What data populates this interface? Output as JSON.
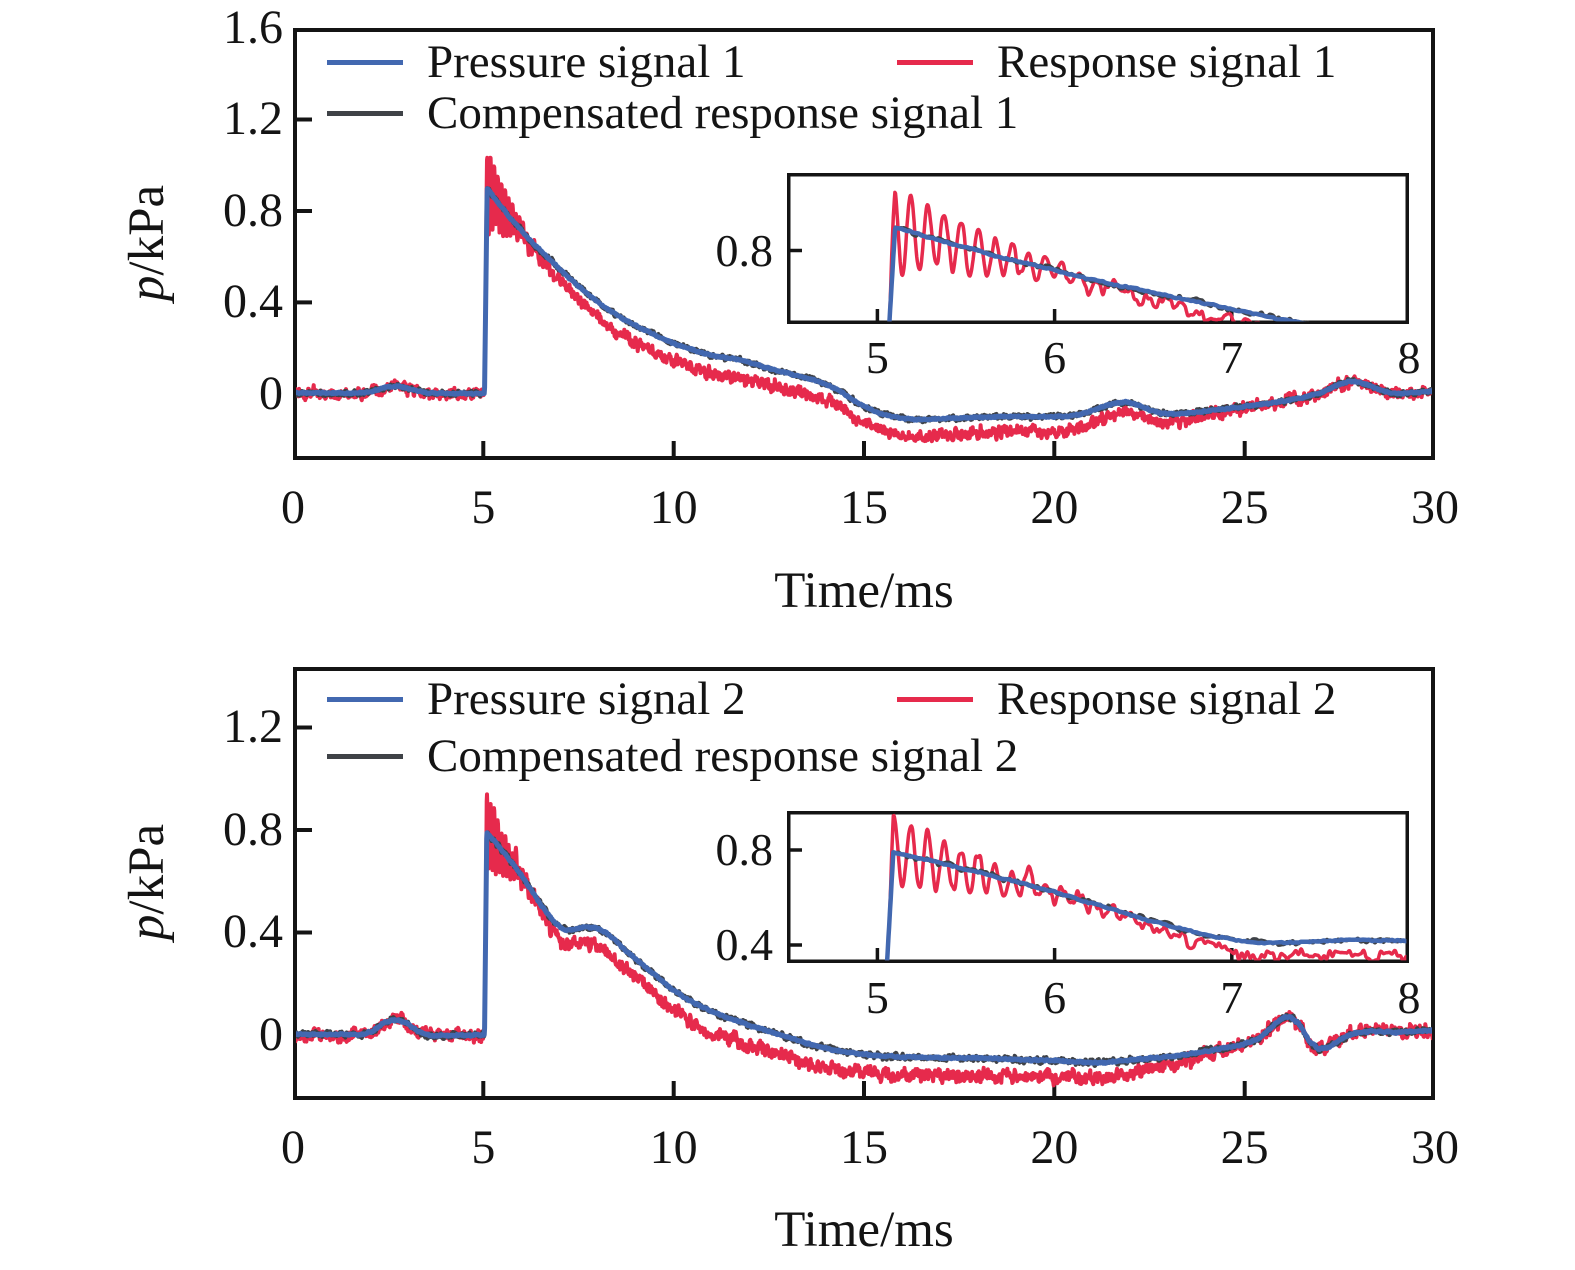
{
  "chart_data": [
    {
      "type": "line",
      "id": "signal1",
      "xlabel": "Time/ms",
      "ylabel_italic": "p",
      "ylabel_rest": "/kPa",
      "x_range": [
        0,
        30
      ],
      "y_range": [
        -0.289,
        1.6
      ],
      "x_ticks": [
        0,
        5,
        10,
        15,
        20,
        25,
        30
      ],
      "x_tick_labels": [
        "0",
        "5",
        "10",
        "15",
        "20",
        "25",
        "30"
      ],
      "x_tick_marks": [
        5,
        10,
        15,
        20,
        25
      ],
      "y_ticks": [
        0,
        0.4,
        0.8,
        1.2,
        1.6
      ],
      "y_tick_labels": [
        "0",
        "0.4",
        "0.8",
        "1.2",
        "1.6"
      ],
      "y_tick_marks": [
        0,
        0.4,
        0.8,
        1.2
      ],
      "grid": false,
      "legend_position": "top-inside",
      "inset": {
        "x_range": [
          4.49,
          8.0
        ],
        "y_range": [
          0.4826,
          1.1348
        ],
        "x_ticks": [
          5,
          6,
          7,
          8
        ],
        "x_tick_labels": [
          "5",
          "6",
          "7",
          "8"
        ],
        "x_tick_marks": [
          5,
          6,
          7
        ],
        "y_ticks": [
          0.8
        ],
        "y_tick_labels": [
          "0.8"
        ],
        "y_tick_marks": [
          0.8
        ]
      },
      "series": [
        {
          "name": "Pressure signal 1",
          "role": "pressure",
          "color": "#4268b0",
          "seed": 11,
          "noise_amp": 0.004,
          "anchors": [
            [
              0,
              0.005
            ],
            [
              1.7,
              0.003
            ],
            [
              2.1,
              0.012
            ],
            [
              2.45,
              0.03
            ],
            [
              2.75,
              0.035
            ],
            [
              3.1,
              0.02
            ],
            [
              3.5,
              0.004
            ],
            [
              4.0,
              0.002
            ],
            [
              5.03,
              0.002
            ],
            [
              5.1,
              0.9
            ],
            [
              5.35,
              0.845
            ],
            [
              5.7,
              0.77
            ],
            [
              6.0,
              0.715
            ],
            [
              6.3,
              0.66
            ],
            [
              6.6,
              0.61
            ],
            [
              6.9,
              0.565
            ],
            [
              7.2,
              0.515
            ],
            [
              7.5,
              0.47
            ],
            [
              7.8,
              0.43
            ],
            [
              8.1,
              0.39
            ],
            [
              8.4,
              0.355
            ],
            [
              8.7,
              0.325
            ],
            [
              9.0,
              0.3
            ],
            [
              9.3,
              0.275
            ],
            [
              9.6,
              0.25
            ],
            [
              9.9,
              0.228
            ],
            [
              10.2,
              0.21
            ],
            [
              10.5,
              0.193
            ],
            [
              10.8,
              0.178
            ],
            [
              11.1,
              0.165
            ],
            [
              11.4,
              0.158
            ],
            [
              11.7,
              0.15
            ],
            [
              12.0,
              0.138
            ],
            [
              12.3,
              0.122
            ],
            [
              12.6,
              0.108
            ],
            [
              12.9,
              0.095
            ],
            [
              13.2,
              0.082
            ],
            [
              13.5,
              0.07
            ],
            [
              13.8,
              0.055
            ],
            [
              14.1,
              0.035
            ],
            [
              14.4,
              0.01
            ],
            [
              14.7,
              -0.025
            ],
            [
              15.0,
              -0.055
            ],
            [
              15.4,
              -0.085
            ],
            [
              15.8,
              -0.1
            ],
            [
              16.2,
              -0.11
            ],
            [
              16.6,
              -0.112
            ],
            [
              17.0,
              -0.108
            ],
            [
              17.5,
              -0.105
            ],
            [
              18.0,
              -0.102
            ],
            [
              18.5,
              -0.1
            ],
            [
              19.0,
              -0.098
            ],
            [
              19.5,
              -0.1
            ],
            [
              20.0,
              -0.1
            ],
            [
              20.4,
              -0.097
            ],
            [
              20.8,
              -0.085
            ],
            [
              21.2,
              -0.06
            ],
            [
              21.6,
              -0.04
            ],
            [
              21.9,
              -0.035
            ],
            [
              22.2,
              -0.048
            ],
            [
              22.5,
              -0.07
            ],
            [
              22.8,
              -0.085
            ],
            [
              23.2,
              -0.088
            ],
            [
              23.6,
              -0.082
            ],
            [
              24.0,
              -0.075
            ],
            [
              24.5,
              -0.065
            ],
            [
              25.0,
              -0.055
            ],
            [
              25.5,
              -0.045
            ],
            [
              26.0,
              -0.032
            ],
            [
              26.5,
              -0.018
            ],
            [
              27.0,
              0.005
            ],
            [
              27.4,
              0.035
            ],
            [
              27.75,
              0.055
            ],
            [
              28.05,
              0.05
            ],
            [
              28.4,
              0.028
            ],
            [
              28.7,
              0.01
            ],
            [
              29.0,
              0.002
            ],
            [
              29.4,
              0.004
            ],
            [
              29.7,
              0.01
            ],
            [
              30,
              0.012
            ]
          ]
        },
        {
          "name": "Response signal 1",
          "role": "response",
          "color": "#e62a4c",
          "seed": 12,
          "noise_amp": 0.03,
          "offset_anchors": [
            [
              0,
              0
            ],
            [
              5.8,
              0
            ],
            [
              6.5,
              -0.03
            ],
            [
              7.5,
              -0.06
            ],
            [
              8.5,
              -0.075
            ],
            [
              10,
              -0.08
            ],
            [
              12,
              -0.075
            ],
            [
              14,
              -0.07
            ],
            [
              15,
              -0.072
            ],
            [
              16,
              -0.075
            ],
            [
              17,
              -0.07
            ],
            [
              18,
              -0.068
            ],
            [
              19,
              -0.066
            ],
            [
              20,
              -0.062
            ],
            [
              21,
              -0.055
            ],
            [
              22,
              -0.045
            ],
            [
              23,
              -0.035
            ],
            [
              24,
              -0.02
            ],
            [
              24.8,
              -0.008
            ],
            [
              25.5,
              0
            ],
            [
              30,
              0
            ]
          ],
          "osc": {
            "t0": 5.07,
            "period": 0.095,
            "tau": 0.62,
            "amp": 0.19
          }
        },
        {
          "name": "Compensated response signal 1",
          "role": "compensated",
          "color": "#3f4247",
          "seed": 13,
          "noise_amp": 0.013
        }
      ]
    },
    {
      "type": "line",
      "id": "signal2",
      "xlabel": "Time/ms",
      "ylabel_italic": "p",
      "ylabel_rest": "/kPa",
      "x_range": [
        0,
        30
      ],
      "y_range": [
        -0.2537,
        1.436
      ],
      "x_ticks": [
        0,
        5,
        10,
        15,
        20,
        25,
        30
      ],
      "x_tick_labels": [
        "0",
        "5",
        "10",
        "15",
        "20",
        "25",
        "30"
      ],
      "x_tick_marks": [
        5,
        10,
        15,
        20,
        25
      ],
      "y_ticks": [
        0,
        0.4,
        0.8,
        1.2
      ],
      "y_tick_labels": [
        "0",
        "0.4",
        "0.8",
        "1.2"
      ],
      "y_tick_marks": [
        0,
        0.4,
        0.8,
        1.2
      ],
      "grid": false,
      "legend_position": "top-inside",
      "inset": {
        "x_range": [
          4.49,
          8.0
        ],
        "y_range": [
          0.3242,
          0.9642
        ],
        "x_ticks": [
          5,
          6,
          7,
          8
        ],
        "x_tick_labels": [
          "5",
          "6",
          "7",
          "8"
        ],
        "x_tick_marks": [
          5,
          6,
          7
        ],
        "y_ticks": [
          0.8,
          0.4
        ],
        "y_tick_labels": [
          "0.8",
          "0.4"
        ],
        "y_tick_marks": [
          0.8,
          0.4
        ]
      },
      "series": [
        {
          "name": "Pressure signal 2",
          "role": "pressure",
          "color": "#4268b0",
          "seed": 21,
          "noise_amp": 0.004,
          "anchors": [
            [
              0,
              0.003
            ],
            [
              1.8,
              0.002
            ],
            [
              2.1,
              0.015
            ],
            [
              2.4,
              0.05
            ],
            [
              2.7,
              0.06
            ],
            [
              3.0,
              0.045
            ],
            [
              3.3,
              0.012
            ],
            [
              3.6,
              -0.003
            ],
            [
              4.0,
              -0.002
            ],
            [
              5.03,
              0
            ],
            [
              5.09,
              0.79
            ],
            [
              5.3,
              0.755
            ],
            [
              5.6,
              0.7
            ],
            [
              5.9,
              0.645
            ],
            [
              6.2,
              0.578
            ],
            [
              6.5,
              0.51
            ],
            [
              6.8,
              0.452
            ],
            [
              7.0,
              0.422
            ],
            [
              7.2,
              0.408
            ],
            [
              7.45,
              0.415
            ],
            [
              7.7,
              0.422
            ],
            [
              7.95,
              0.418
            ],
            [
              8.2,
              0.4
            ],
            [
              8.5,
              0.365
            ],
            [
              8.8,
              0.322
            ],
            [
              9.1,
              0.285
            ],
            [
              9.4,
              0.248
            ],
            [
              9.7,
              0.21
            ],
            [
              10.0,
              0.175
            ],
            [
              10.3,
              0.145
            ],
            [
              10.6,
              0.12
            ],
            [
              11.0,
              0.092
            ],
            [
              11.4,
              0.068
            ],
            [
              11.8,
              0.048
            ],
            [
              12.2,
              0.028
            ],
            [
              12.6,
              0.01
            ],
            [
              13.0,
              -0.008
            ],
            [
              13.4,
              -0.028
            ],
            [
              13.8,
              -0.045
            ],
            [
              14.2,
              -0.058
            ],
            [
              14.6,
              -0.068
            ],
            [
              15.0,
              -0.075
            ],
            [
              15.5,
              -0.082
            ],
            [
              16.0,
              -0.086
            ],
            [
              16.5,
              -0.087
            ],
            [
              17.0,
              -0.09
            ],
            [
              17.5,
              -0.09
            ],
            [
              18.0,
              -0.09
            ],
            [
              18.5,
              -0.092
            ],
            [
              19.0,
              -0.095
            ],
            [
              19.5,
              -0.098
            ],
            [
              20.0,
              -0.1
            ],
            [
              20.5,
              -0.104
            ],
            [
              21.0,
              -0.108
            ],
            [
              21.4,
              -0.108
            ],
            [
              21.8,
              -0.1
            ],
            [
              22.2,
              -0.095
            ],
            [
              22.6,
              -0.09
            ],
            [
              23.0,
              -0.085
            ],
            [
              23.4,
              -0.078
            ],
            [
              23.8,
              -0.068
            ],
            [
              24.2,
              -0.058
            ],
            [
              24.6,
              -0.048
            ],
            [
              25.0,
              -0.035
            ],
            [
              25.4,
              -0.012
            ],
            [
              25.7,
              0.03
            ],
            [
              26.0,
              0.068
            ],
            [
              26.2,
              0.072
            ],
            [
              26.45,
              0.04
            ],
            [
              26.7,
              -0.025
            ],
            [
              26.95,
              -0.055
            ],
            [
              27.2,
              -0.048
            ],
            [
              27.5,
              -0.02
            ],
            [
              27.8,
              0.003
            ],
            [
              28.1,
              0.012
            ],
            [
              28.5,
              0.014
            ],
            [
              29.0,
              0.01
            ],
            [
              29.5,
              0.014
            ],
            [
              30,
              0.018
            ]
          ]
        },
        {
          "name": "Response signal 2",
          "role": "response",
          "color": "#e62a4c",
          "seed": 22,
          "noise_amp": 0.03,
          "offset_anchors": [
            [
              0,
              0
            ],
            [
              5.9,
              0
            ],
            [
              6.6,
              -0.03
            ],
            [
              7.6,
              -0.06
            ],
            [
              8.6,
              -0.075
            ],
            [
              10,
              -0.08
            ],
            [
              12,
              -0.078
            ],
            [
              14,
              -0.075
            ],
            [
              16,
              -0.072
            ],
            [
              18,
              -0.07
            ],
            [
              19.5,
              -0.065
            ],
            [
              21,
              -0.058
            ],
            [
              22,
              -0.05
            ],
            [
              23,
              -0.035
            ],
            [
              23.8,
              -0.018
            ],
            [
              24.5,
              -0.005
            ],
            [
              25.2,
              0
            ],
            [
              30,
              0
            ]
          ],
          "osc": {
            "t0": 5.07,
            "period": 0.095,
            "tau": 0.62,
            "amp": 0.16
          }
        },
        {
          "name": "Compensated response signal 2",
          "role": "compensated",
          "color": "#3f4247",
          "seed": 23,
          "noise_amp": 0.013
        }
      ]
    }
  ]
}
